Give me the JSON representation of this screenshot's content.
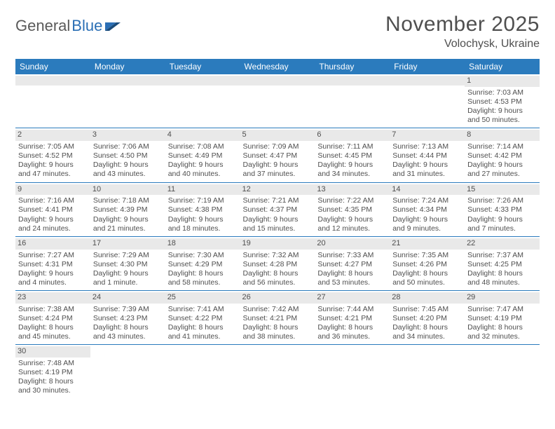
{
  "logo": {
    "part1": "General",
    "part2": "Blue"
  },
  "title": "November 2025",
  "location": "Volochysk, Ukraine",
  "columns": [
    "Sunday",
    "Monday",
    "Tuesday",
    "Wednesday",
    "Thursday",
    "Friday",
    "Saturday"
  ],
  "colors": {
    "header_bg": "#2b7bbd",
    "header_fg": "#ffffff",
    "daynum_bg": "#e9e9e9",
    "cell_border": "#2b7bbd",
    "text": "#4f4f4f",
    "logo_blue": "#2b6fb5"
  },
  "rows": [
    [
      {
        "blank": true
      },
      {
        "blank": true
      },
      {
        "blank": true
      },
      {
        "blank": true
      },
      {
        "blank": true
      },
      {
        "blank": true
      },
      {
        "n": "1",
        "sunrise": "7:03 AM",
        "sunset": "4:53 PM",
        "day_h": 9,
        "day_m": 50
      }
    ],
    [
      {
        "n": "2",
        "sunrise": "7:05 AM",
        "sunset": "4:52 PM",
        "day_h": 9,
        "day_m": 47
      },
      {
        "n": "3",
        "sunrise": "7:06 AM",
        "sunset": "4:50 PM",
        "day_h": 9,
        "day_m": 43
      },
      {
        "n": "4",
        "sunrise": "7:08 AM",
        "sunset": "4:49 PM",
        "day_h": 9,
        "day_m": 40
      },
      {
        "n": "5",
        "sunrise": "7:09 AM",
        "sunset": "4:47 PM",
        "day_h": 9,
        "day_m": 37
      },
      {
        "n": "6",
        "sunrise": "7:11 AM",
        "sunset": "4:45 PM",
        "day_h": 9,
        "day_m": 34
      },
      {
        "n": "7",
        "sunrise": "7:13 AM",
        "sunset": "4:44 PM",
        "day_h": 9,
        "day_m": 31
      },
      {
        "n": "8",
        "sunrise": "7:14 AM",
        "sunset": "4:42 PM",
        "day_h": 9,
        "day_m": 27
      }
    ],
    [
      {
        "n": "9",
        "sunrise": "7:16 AM",
        "sunset": "4:41 PM",
        "day_h": 9,
        "day_m": 24
      },
      {
        "n": "10",
        "sunrise": "7:18 AM",
        "sunset": "4:39 PM",
        "day_h": 9,
        "day_m": 21
      },
      {
        "n": "11",
        "sunrise": "7:19 AM",
        "sunset": "4:38 PM",
        "day_h": 9,
        "day_m": 18
      },
      {
        "n": "12",
        "sunrise": "7:21 AM",
        "sunset": "4:37 PM",
        "day_h": 9,
        "day_m": 15
      },
      {
        "n": "13",
        "sunrise": "7:22 AM",
        "sunset": "4:35 PM",
        "day_h": 9,
        "day_m": 12
      },
      {
        "n": "14",
        "sunrise": "7:24 AM",
        "sunset": "4:34 PM",
        "day_h": 9,
        "day_m": 9
      },
      {
        "n": "15",
        "sunrise": "7:26 AM",
        "sunset": "4:33 PM",
        "day_h": 9,
        "day_m": 7
      }
    ],
    [
      {
        "n": "16",
        "sunrise": "7:27 AM",
        "sunset": "4:31 PM",
        "day_h": 9,
        "day_m": 4
      },
      {
        "n": "17",
        "sunrise": "7:29 AM",
        "sunset": "4:30 PM",
        "day_h": 9,
        "day_m": 1
      },
      {
        "n": "18",
        "sunrise": "7:30 AM",
        "sunset": "4:29 PM",
        "day_h": 8,
        "day_m": 58
      },
      {
        "n": "19",
        "sunrise": "7:32 AM",
        "sunset": "4:28 PM",
        "day_h": 8,
        "day_m": 56
      },
      {
        "n": "20",
        "sunrise": "7:33 AM",
        "sunset": "4:27 PM",
        "day_h": 8,
        "day_m": 53
      },
      {
        "n": "21",
        "sunrise": "7:35 AM",
        "sunset": "4:26 PM",
        "day_h": 8,
        "day_m": 50
      },
      {
        "n": "22",
        "sunrise": "7:37 AM",
        "sunset": "4:25 PM",
        "day_h": 8,
        "day_m": 48
      }
    ],
    [
      {
        "n": "23",
        "sunrise": "7:38 AM",
        "sunset": "4:24 PM",
        "day_h": 8,
        "day_m": 45
      },
      {
        "n": "24",
        "sunrise": "7:39 AM",
        "sunset": "4:23 PM",
        "day_h": 8,
        "day_m": 43
      },
      {
        "n": "25",
        "sunrise": "7:41 AM",
        "sunset": "4:22 PM",
        "day_h": 8,
        "day_m": 41
      },
      {
        "n": "26",
        "sunrise": "7:42 AM",
        "sunset": "4:21 PM",
        "day_h": 8,
        "day_m": 38
      },
      {
        "n": "27",
        "sunrise": "7:44 AM",
        "sunset": "4:21 PM",
        "day_h": 8,
        "day_m": 36
      },
      {
        "n": "28",
        "sunrise": "7:45 AM",
        "sunset": "4:20 PM",
        "day_h": 8,
        "day_m": 34
      },
      {
        "n": "29",
        "sunrise": "7:47 AM",
        "sunset": "4:19 PM",
        "day_h": 8,
        "day_m": 32
      }
    ],
    [
      {
        "n": "30",
        "sunrise": "7:48 AM",
        "sunset": "4:19 PM",
        "day_h": 8,
        "day_m": 30
      },
      {
        "trail": true
      },
      {
        "trail": true
      },
      {
        "trail": true
      },
      {
        "trail": true
      },
      {
        "trail": true
      },
      {
        "trail": true
      }
    ]
  ],
  "labels": {
    "sunrise": "Sunrise:",
    "sunset": "Sunset:",
    "daylight": "Daylight:",
    "hours": "hours",
    "and": "and",
    "minutes": "minutes.",
    "minute": "minute."
  }
}
